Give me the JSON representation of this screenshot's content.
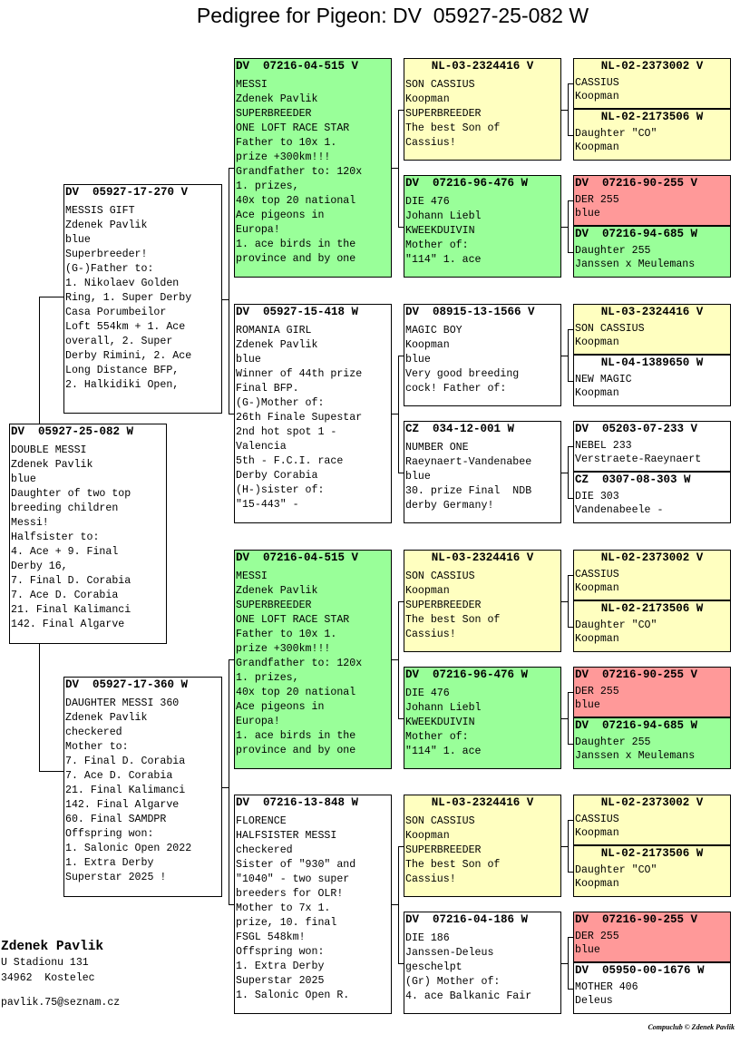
{
  "title": "Pedigree for Pigeon: DV  05927-25-082 W",
  "subject": {
    "ring": "DV  05927-25-082 W",
    "color": "white",
    "lines": [
      "DOUBLE MESSI",
      "Zdenek Pavlik",
      "blue",
      "Daughter of two top",
      "breeding children",
      "Messi!",
      "Halfsister to:",
      "4. Ace + 9. Final",
      "Derby 16,",
      "7. Final D. Corabia",
      "7. Ace D. Corabia",
      "21. Final Kalimanci",
      "142. Final Algarve"
    ]
  },
  "parents": [
    {
      "ring": "DV  05927-17-270 V",
      "color": "white",
      "lines": [
        "MESSIS GIFT",
        "Zdenek Pavlik",
        "blue",
        "Superbreeder!",
        "(G-)Father to:",
        "1. Nikolaev Golden",
        "Ring, 1. Super Derby",
        "Casa Porumbeilor",
        "Loft 554km + 1. Ace",
        "overall, 2. Super",
        "Derby Rimini, 2. Ace",
        "Long Distance BFP,",
        "2. Halkidiki Open,"
      ]
    },
    {
      "ring": "DV  05927-17-360 W",
      "color": "white",
      "lines": [
        "DAUGHTER MESSI 360",
        "Zdenek Pavlik",
        "checkered",
        "Mother to:",
        "7. Final D. Corabia",
        "7. Ace D. Corabia",
        "21. Final Kalimanci",
        "142. Final Algarve",
        "60. Final SAMDPR",
        "Offspring won:",
        "1. Salonic Open 2022",
        "1. Extra Derby",
        "Superstar 2025 !"
      ]
    }
  ],
  "grandparents": [
    {
      "ring": "DV  07216-04-515 V",
      "color": "green",
      "lines": [
        "MESSI",
        "Zdenek Pavlik",
        "SUPERBREEDER",
        "ONE LOFT RACE STAR",
        "Father to 10x 1.",
        "prize +300km!!!",
        "Grandfather to: 120x",
        "1. prizes,",
        "40x top 20 national",
        "Ace pigeons in",
        "Europa!",
        "1. ace birds in the",
        "province and by one"
      ]
    },
    {
      "ring": "DV  05927-15-418 W",
      "color": "white",
      "lines": [
        "ROMANIA GIRL",
        "Zdenek Pavlik",
        "blue",
        "Winner of 44th prize",
        "Final BFP.",
        "(G-)Mother of:",
        "26th Finale Supestar",
        "2nd hot spot 1 -",
        "Valencia",
        "5th - F.C.I. race",
        "Derby Corabia",
        "(H-)sister of:",
        "\"15-443\" -"
      ]
    },
    {
      "ring": "DV  07216-04-515 V",
      "color": "green",
      "lines": [
        "MESSI",
        "Zdenek Pavlik",
        "SUPERBREEDER",
        "ONE LOFT RACE STAR",
        "Father to 10x 1.",
        "prize +300km!!!",
        "Grandfather to: 120x",
        "1. prizes,",
        "40x top 20 national",
        "Ace pigeons in",
        "Europa!",
        "1. ace birds in the",
        "province and by one"
      ]
    },
    {
      "ring": "DV  07216-13-848 W",
      "color": "white",
      "lines": [
        "FLORENCE",
        "HALFSISTER MESSI",
        "checkered",
        "Sister of \"930\" and",
        "\"1040\" - two super",
        "breeders for OLR!",
        "Mother to 7x 1.",
        "prize, 10. final",
        "FSGL 548km!",
        "Offspring won:",
        "1. Extra Derby",
        "Superstar 2025",
        "1. Salonic Open R."
      ]
    }
  ],
  "great_grandparents": [
    {
      "ring": "NL-03-2324416 V",
      "center": true,
      "color": "yellow",
      "lines": [
        "SON CASSIUS",
        "Koopman",
        "SUPERBREEDER",
        "The best Son of",
        "Cassius!"
      ]
    },
    {
      "ring": "DV  07216-96-476 W",
      "color": "green",
      "lines": [
        "DIE 476",
        "Johann Liebl",
        "KWEEKDUIVIN",
        "Mother of:",
        "\"114\" 1. ace"
      ]
    },
    {
      "ring": "DV  08915-13-1566 V",
      "color": "white",
      "lines": [
        "MAGIC BOY",
        "Koopman",
        "blue",
        "Very good breeding",
        "cock! Father of:"
      ]
    },
    {
      "ring": "CZ  034-12-001 W",
      "color": "white",
      "lines": [
        "NUMBER ONE",
        "Raeynaert-Vandenabee",
        "blue",
        "30. prize Final  NDB",
        "derby Germany!"
      ]
    },
    {
      "ring": "NL-03-2324416 V",
      "center": true,
      "color": "yellow",
      "lines": [
        "SON CASSIUS",
        "Koopman",
        "SUPERBREEDER",
        "The best Son of",
        "Cassius!"
      ]
    },
    {
      "ring": "DV  07216-96-476 W",
      "color": "green",
      "lines": [
        "DIE 476",
        "Johann Liebl",
        "KWEEKDUIVIN",
        "Mother of:",
        "\"114\" 1. ace"
      ]
    },
    {
      "ring": "NL-03-2324416 V",
      "center": true,
      "color": "yellow",
      "lines": [
        "SON CASSIUS",
        "Koopman",
        "SUPERBREEDER",
        "The best Son of",
        "Cassius!"
      ]
    },
    {
      "ring": "DV  07216-04-186 W",
      "color": "white",
      "lines": [
        "DIE 186",
        "Janssen-Deleus",
        "geschelpt",
        "(Gr) Mother of:",
        "4. ace Balkanic Fair"
      ]
    }
  ],
  "great_great_grandparents": [
    {
      "ring": "NL-02-2373002 V",
      "center": true,
      "color": "yellow",
      "lines": [
        "CASSIUS",
        "Koopman"
      ]
    },
    {
      "ring": "NL-02-2173506 W",
      "center": true,
      "color": "yellow",
      "lines": [
        "Daughter \"CO\"",
        "Koopman"
      ]
    },
    {
      "ring": "DV  07216-90-255 V",
      "color": "red",
      "lines": [
        "DER 255",
        "blue"
      ]
    },
    {
      "ring": "DV  07216-94-685 W",
      "color": "green",
      "lines": [
        "Daughter 255",
        "Janssen x Meulemans"
      ]
    },
    {
      "ring": "NL-03-2324416 V",
      "center": true,
      "color": "yellow",
      "lines": [
        "SON CASSIUS",
        "Koopman"
      ]
    },
    {
      "ring": "NL-04-1389650 W",
      "center": true,
      "color": "white",
      "lines": [
        "NEW MAGIC",
        "Koopman"
      ]
    },
    {
      "ring": "DV  05203-07-233 V",
      "color": "white",
      "lines": [
        "NEBEL 233",
        "Verstraete-Raeynaert"
      ]
    },
    {
      "ring": "CZ  0307-08-303 W",
      "color": "white",
      "lines": [
        "DIE 303",
        "Vandenabeele -"
      ]
    },
    {
      "ring": "NL-02-2373002 V",
      "center": true,
      "color": "yellow",
      "lines": [
        "CASSIUS",
        "Koopman"
      ]
    },
    {
      "ring": "NL-02-2173506 W",
      "center": true,
      "color": "yellow",
      "lines": [
        "Daughter \"CO\"",
        "Koopman"
      ]
    },
    {
      "ring": "DV  07216-90-255 V",
      "color": "red",
      "lines": [
        "DER 255",
        "blue"
      ]
    },
    {
      "ring": "DV  07216-94-685 W",
      "color": "green",
      "lines": [
        "Daughter 255",
        "Janssen x Meulemans"
      ]
    },
    {
      "ring": "NL-02-2373002 V",
      "center": true,
      "color": "yellow",
      "lines": [
        "CASSIUS",
        "Koopman"
      ]
    },
    {
      "ring": "NL-02-2173506 W",
      "center": true,
      "color": "yellow",
      "lines": [
        "Daughter \"CO\"",
        "Koopman"
      ]
    },
    {
      "ring": "DV  07216-90-255 V",
      "color": "red",
      "lines": [
        "DER 255",
        "blue"
      ]
    },
    {
      "ring": "DV  05950-00-1676 W",
      "color": "white",
      "lines": [
        "MOTHER 406",
        "Deleus"
      ]
    }
  ],
  "owner": {
    "name": "Zdenek Pavlik",
    "address": "U Stadionu 131",
    "city": "34962  Kostelec",
    "email": "pavlik.75@seznam.cz"
  },
  "copyright": "Compuclub © Zdenek Pavlik",
  "colors": {
    "green": "#99ff99",
    "yellow": "#ffffc0",
    "red": "#ff9999",
    "white": "#ffffff"
  }
}
